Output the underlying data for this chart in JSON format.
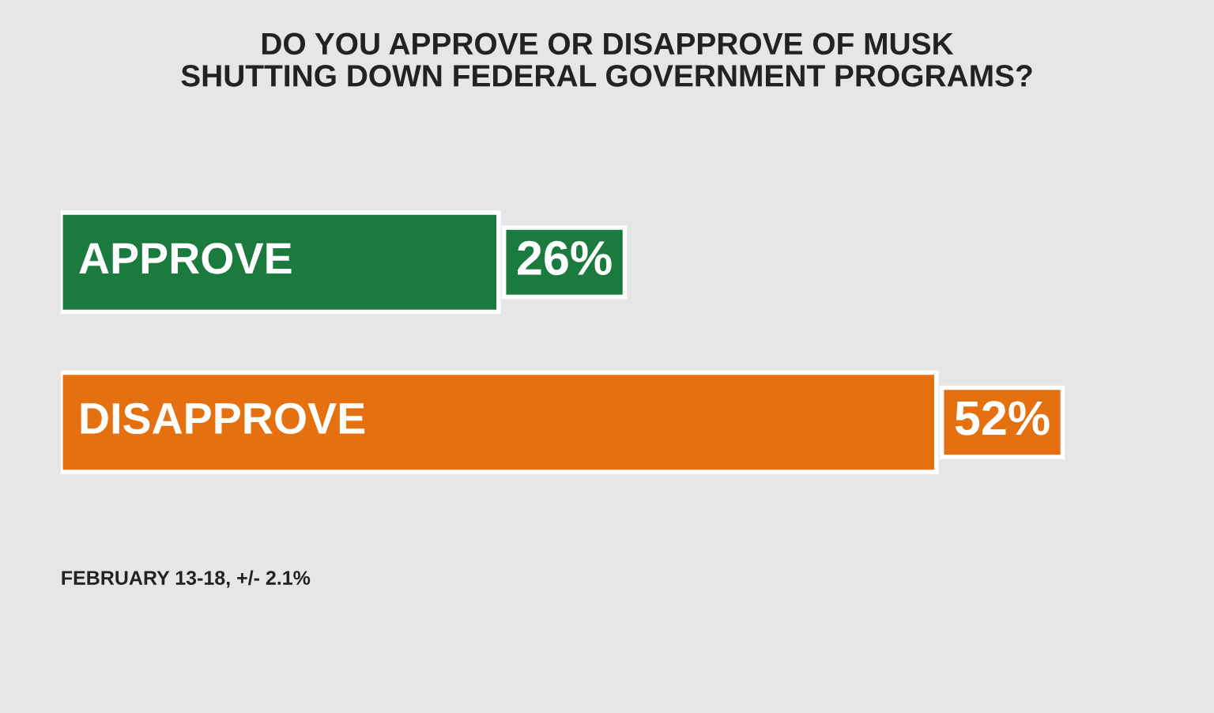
{
  "chart_data": {
    "type": "bar",
    "orientation": "horizontal",
    "title": "DO YOU APPROVE OR DISAPPROVE OF MUSK\nSHUTTING DOWN FEDERAL GOVERNMENT PROGRAMS?",
    "categories": [
      "APPROVE",
      "DISAPPROVE"
    ],
    "values": [
      26,
      52
    ],
    "colors": [
      "#1b7a3e",
      "#e5700f"
    ],
    "value_labels": [
      "26%",
      "52%"
    ],
    "tick_labels": false,
    "grid": false,
    "legend": false,
    "annotations": [
      "FEBRUARY 13-18, +/- 2.1%"
    ]
  }
}
